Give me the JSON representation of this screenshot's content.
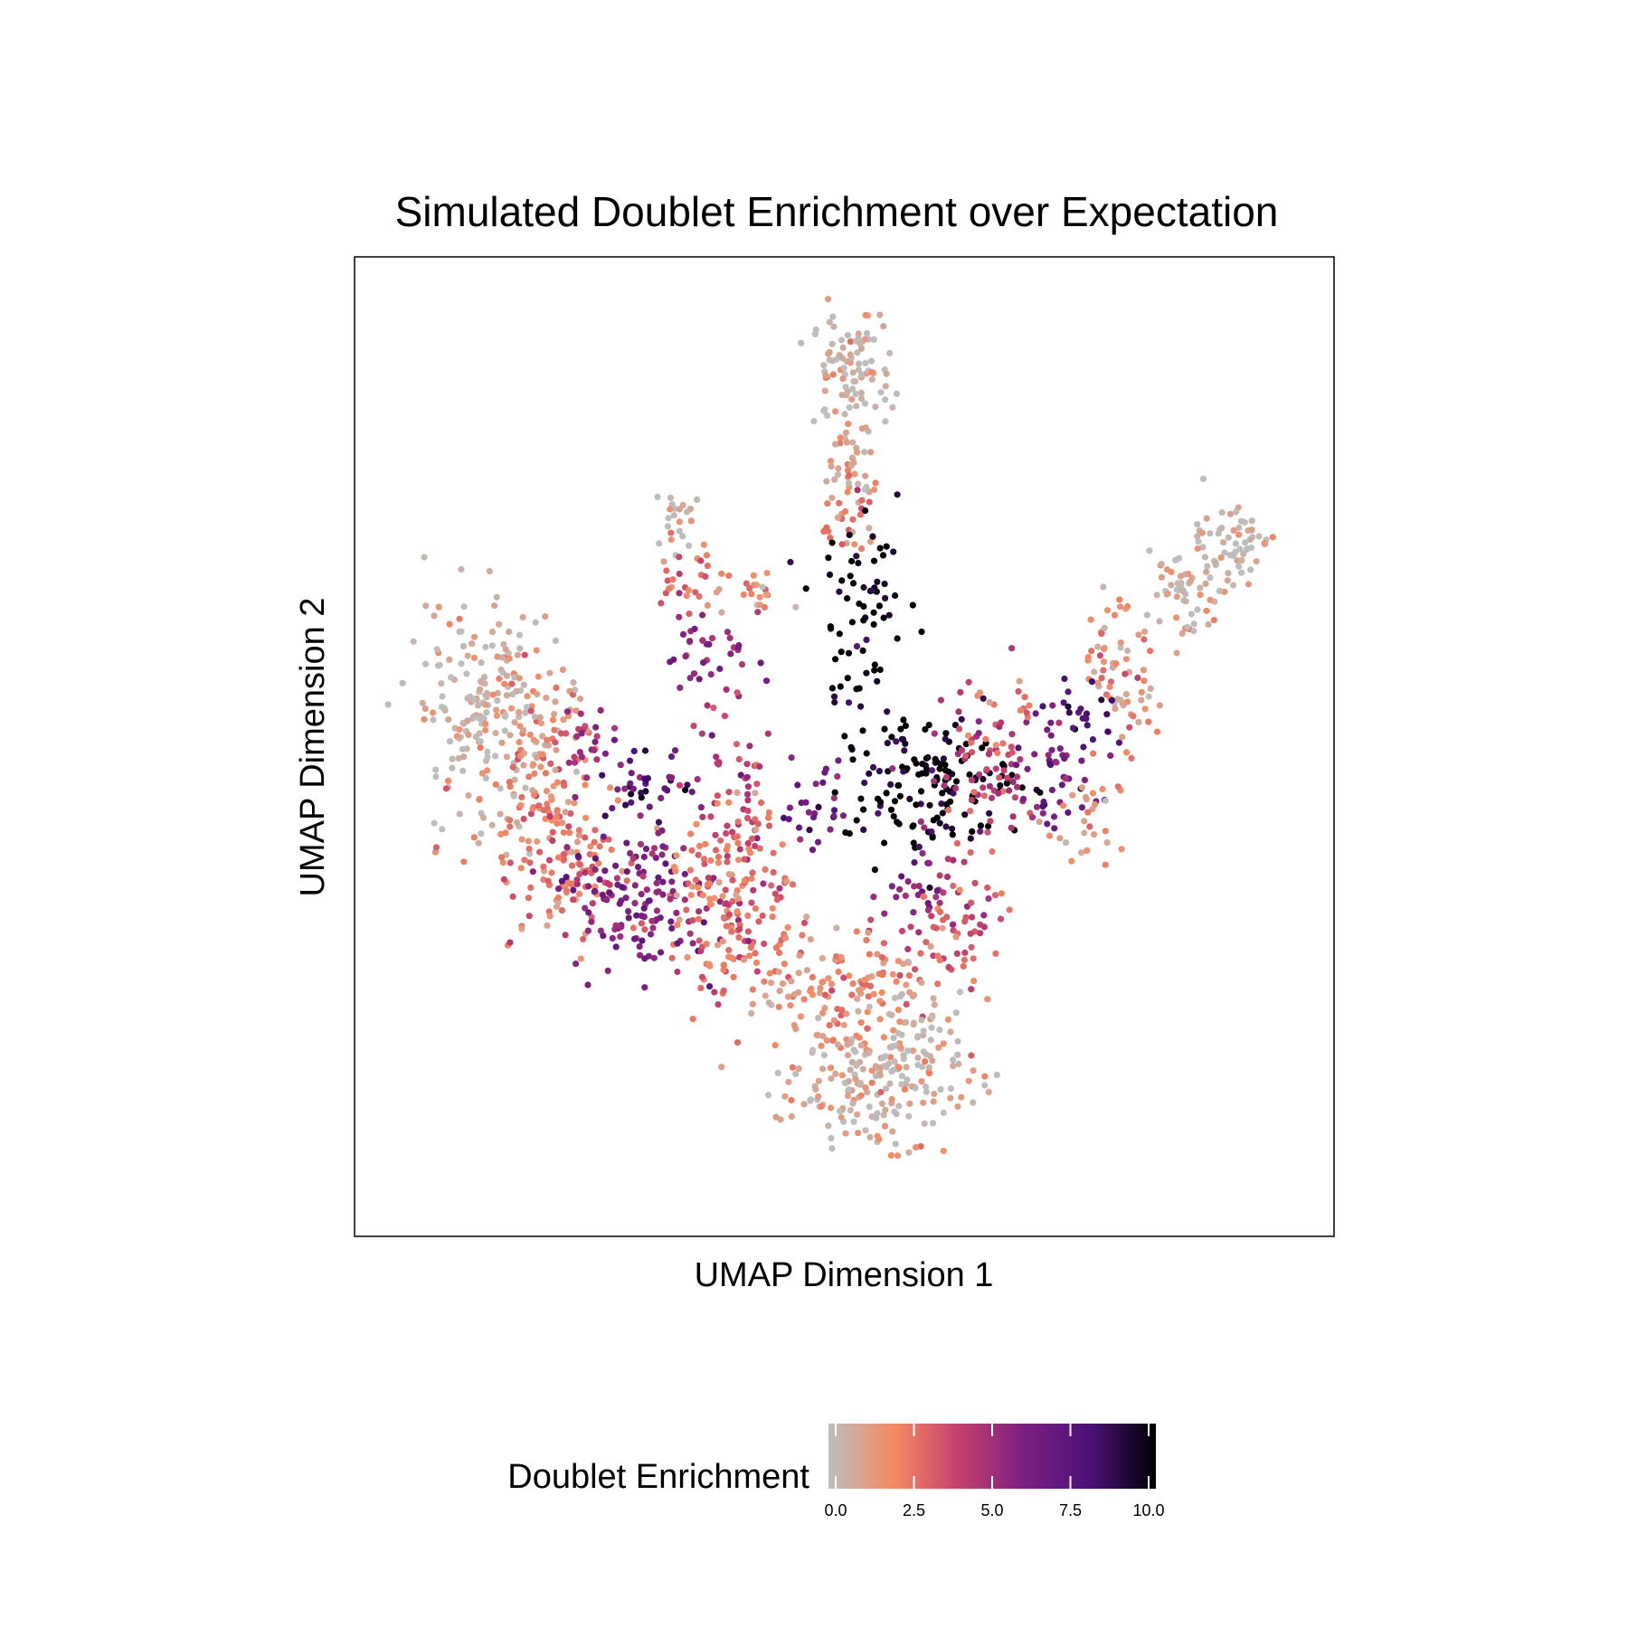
{
  "chart_data": {
    "type": "scatter",
    "title": "Simulated Doublet Enrichment over Expectation",
    "xlabel": "UMAP Dimension 1",
    "ylabel": "UMAP Dimension 2",
    "x_ticks_visible": false,
    "y_ticks_visible": false,
    "grid": false,
    "xlim": [
      0,
      100
    ],
    "ylim": [
      0,
      100
    ],
    "color_scale": {
      "title": "Doublet Enrichment",
      "min": 0,
      "max": 10,
      "ticks": [
        "0.0",
        "2.5",
        "5.0",
        "7.5",
        "10.0"
      ],
      "tick_values": [
        0,
        2.5,
        5,
        7.5,
        10
      ],
      "colors": [
        "#bdbdbd",
        "#f58a62",
        "#c43f6e",
        "#7b1f82",
        "#4b1178",
        "#000000"
      ],
      "legend_position": "bottom"
    },
    "clusters": [
      {
        "cx": 50.9,
        "cy": 91.5,
        "sx": 2.2,
        "sy": 2.8,
        "n": 90,
        "v": 0.2
      },
      {
        "cx": 51.0,
        "cy": 82.0,
        "sx": 1.2,
        "sy": 3.0,
        "n": 40,
        "v": 1.2
      },
      {
        "cx": 50.0,
        "cy": 75.0,
        "sx": 1.6,
        "sy": 2.6,
        "n": 30,
        "v": 2.5
      },
      {
        "cx": 31.5,
        "cy": 75.0,
        "sx": 1.2,
        "sy": 2.0,
        "n": 22,
        "v": 0.3
      },
      {
        "cx": 33.0,
        "cy": 68.0,
        "sx": 1.8,
        "sy": 2.4,
        "n": 30,
        "v": 2.5
      },
      {
        "cx": 35.0,
        "cy": 60.0,
        "sx": 2.5,
        "sy": 2.5,
        "n": 35,
        "v": 5.5
      },
      {
        "cx": 10.0,
        "cy": 55.0,
        "sx": 4.0,
        "sy": 5.5,
        "n": 180,
        "v": 0.4
      },
      {
        "cx": 16.0,
        "cy": 48.0,
        "sx": 3.2,
        "sy": 6.0,
        "n": 130,
        "v": 1.8
      },
      {
        "cx": 20.0,
        "cy": 37.0,
        "sx": 4.0,
        "sy": 4.0,
        "n": 110,
        "v": 2.6
      },
      {
        "cx": 28.0,
        "cy": 33.0,
        "sx": 4.0,
        "sy": 3.8,
        "n": 140,
        "v": 5.8
      },
      {
        "cx": 28.0,
        "cy": 46.0,
        "sx": 3.0,
        "sy": 2.6,
        "n": 40,
        "v": 7.3
      },
      {
        "cx": 21.0,
        "cy": 51.0,
        "sx": 2.2,
        "sy": 2.2,
        "n": 25,
        "v": 5.0
      },
      {
        "cx": 38.0,
        "cy": 44.0,
        "sx": 2.6,
        "sy": 6.0,
        "n": 60,
        "v": 3.8
      },
      {
        "cx": 38.0,
        "cy": 33.0,
        "sx": 3.5,
        "sy": 5.0,
        "n": 160,
        "v": 2.6
      },
      {
        "cx": 52.0,
        "cy": 63.0,
        "sx": 2.6,
        "sy": 6.0,
        "n": 70,
        "v": 10.0
      },
      {
        "cx": 59.0,
        "cy": 46.0,
        "sx": 5.0,
        "sy": 4.0,
        "n": 150,
        "v": 10.0
      },
      {
        "cx": 47.0,
        "cy": 44.0,
        "sx": 2.5,
        "sy": 3.0,
        "n": 25,
        "v": 6.0
      },
      {
        "cx": 65.0,
        "cy": 48.0,
        "sx": 3.5,
        "sy": 3.5,
        "n": 70,
        "v": 4.0
      },
      {
        "cx": 73.5,
        "cy": 48.0,
        "sx": 2.2,
        "sy": 4.0,
        "n": 50,
        "v": 6.2
      },
      {
        "cx": 59.0,
        "cy": 35.0,
        "sx": 3.0,
        "sy": 3.0,
        "n": 40,
        "v": 5.5
      },
      {
        "cx": 61.0,
        "cy": 29.0,
        "sx": 3.5,
        "sy": 3.5,
        "n": 60,
        "v": 3.2
      },
      {
        "cx": 50.0,
        "cy": 23.0,
        "sx": 6.0,
        "sy": 3.0,
        "n": 130,
        "v": 1.8
      },
      {
        "cx": 53.0,
        "cy": 13.0,
        "sx": 5.0,
        "sy": 3.2,
        "n": 190,
        "v": 0.7
      },
      {
        "cx": 58.0,
        "cy": 19.0,
        "sx": 3.0,
        "sy": 3.0,
        "n": 40,
        "v": 0.5
      },
      {
        "cx": 80.0,
        "cy": 58.0,
        "sx": 2.0,
        "sy": 4.0,
        "n": 70,
        "v": 1.9
      },
      {
        "cx": 77.0,
        "cy": 54.0,
        "sx": 1.8,
        "sy": 2.2,
        "n": 18,
        "v": 8.0
      },
      {
        "cx": 87.0,
        "cy": 67.0,
        "sx": 2.2,
        "sy": 2.8,
        "n": 60,
        "v": 0.8
      },
      {
        "cx": 92.0,
        "cy": 72.0,
        "sx": 2.2,
        "sy": 2.4,
        "n": 60,
        "v": 0.3
      },
      {
        "cx": 76.0,
        "cy": 42.0,
        "sx": 2.0,
        "sy": 3.0,
        "n": 30,
        "v": 1.2
      },
      {
        "cx": 40.5,
        "cy": 66.5,
        "sx": 1.5,
        "sy": 1.2,
        "n": 18,
        "v": 1.8
      },
      {
        "cx": 66.5,
        "cy": 54.0,
        "sx": 2.0,
        "sy": 1.5,
        "n": 12,
        "v": 2.2
      }
    ]
  }
}
